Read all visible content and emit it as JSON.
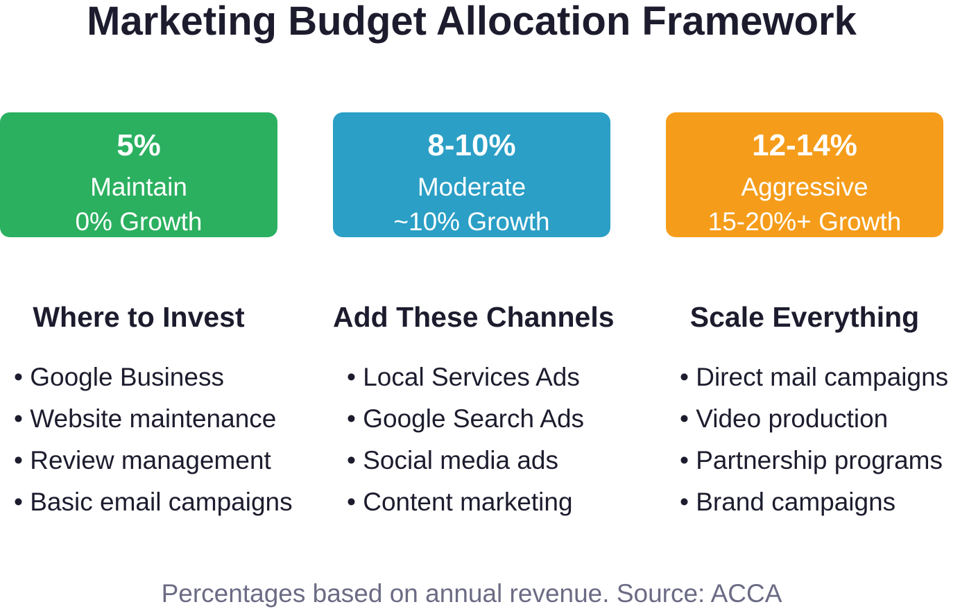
{
  "title": "Marketing Budget Allocation Framework",
  "colors": {
    "maintain": "#2bb060",
    "moderate": "#2b9fc6",
    "aggressive": "#f59d1b"
  },
  "tiers": [
    {
      "percentage": "5%",
      "name": "Maintain",
      "growth": "0% Growth",
      "heading": "Where to Invest",
      "items": [
        "Google Business",
        "Website maintenance",
        "Review management",
        "Basic email campaigns"
      ]
    },
    {
      "percentage": "8-10%",
      "name": "Moderate",
      "growth": "~10% Growth",
      "heading": "Add These Channels",
      "items": [
        "Local Services Ads",
        "Google Search Ads",
        "Social media ads",
        "Content marketing"
      ]
    },
    {
      "percentage": "12-14%",
      "name": "Aggressive",
      "growth": "15-20%+ Growth",
      "heading": "Scale Everything",
      "items": [
        "Direct mail campaigns",
        "Video production",
        "Partnership programs",
        "Brand campaigns"
      ]
    }
  ],
  "footnote": "Percentages based on annual revenue. Source: ACCA"
}
